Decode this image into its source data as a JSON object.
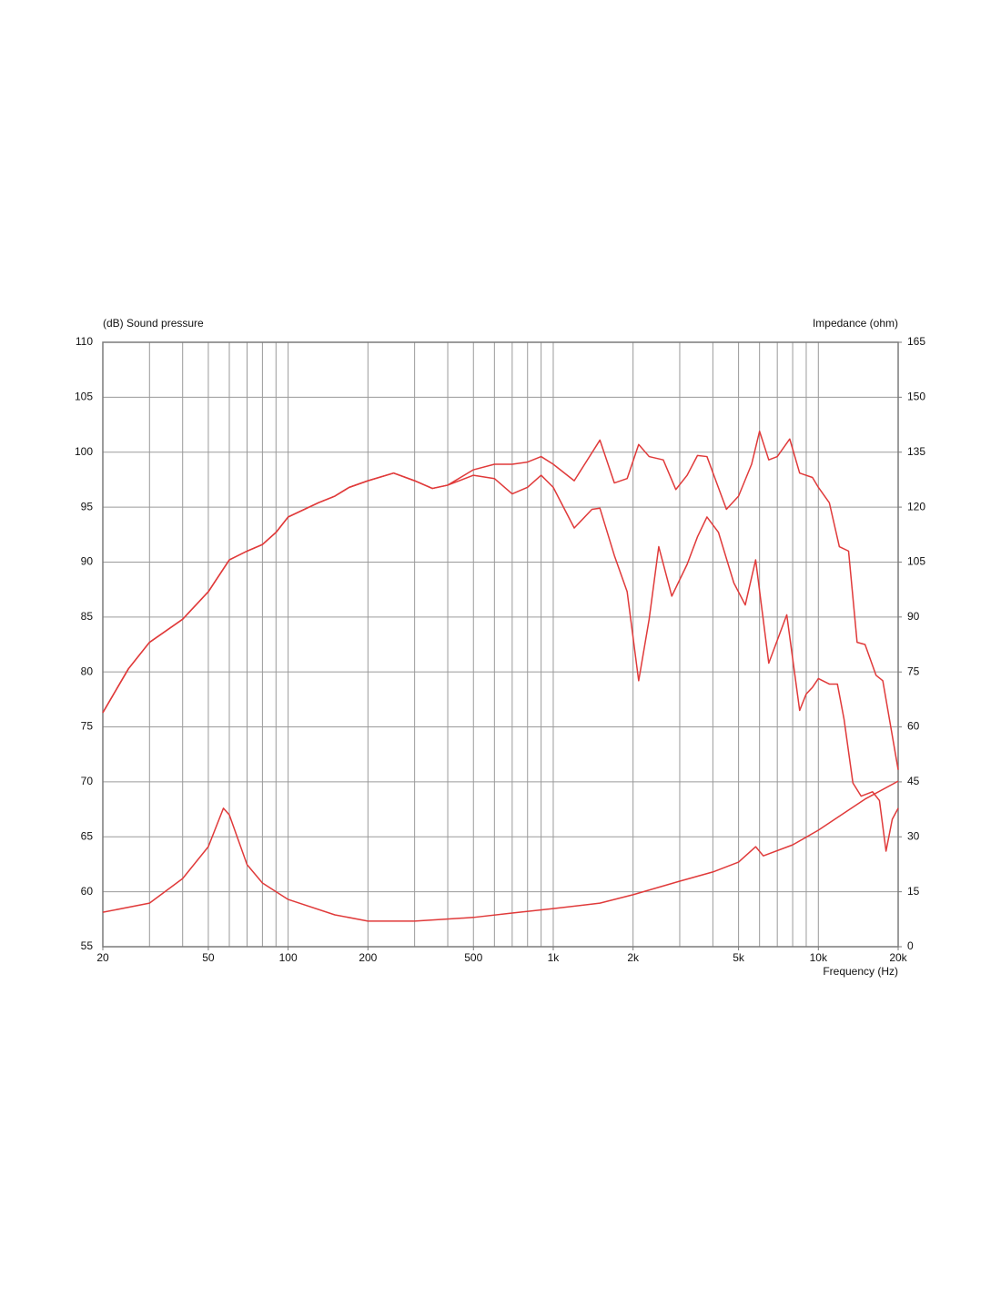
{
  "chart_data": {
    "type": "line",
    "ylabel": "(dB)  Sound pressure",
    "y2label": "Impedance  (ohm)",
    "xlabel": "Frequency  (Hz)",
    "xscale": "log",
    "grid": true,
    "xlim": [
      20,
      20000
    ],
    "xticks": [
      20,
      50,
      100,
      200,
      500,
      {
        "value": 1000,
        "label": "1k"
      },
      {
        "value": 2000,
        "label": "2k"
      },
      {
        "value": 5000,
        "label": "5k"
      },
      {
        "value": 10000,
        "label": "10k"
      },
      {
        "value": 20000,
        "label": "20k"
      }
    ],
    "xgrid": [
      20,
      30,
      40,
      50,
      60,
      70,
      80,
      90,
      100,
      200,
      300,
      400,
      500,
      600,
      700,
      800,
      900,
      1000,
      2000,
      3000,
      4000,
      5000,
      6000,
      7000,
      8000,
      9000,
      10000,
      20000
    ],
    "ylim": [
      55,
      110
    ],
    "yticks": [
      55,
      60,
      65,
      70,
      75,
      80,
      85,
      90,
      95,
      100,
      105,
      110
    ],
    "y2lim": [
      0,
      165
    ],
    "y2ticks": [
      0,
      15,
      30,
      45,
      60,
      75,
      90,
      105,
      120,
      135,
      150,
      165
    ],
    "series": [
      {
        "color": "#e03a3a",
        "x": [
          20,
          25,
          30,
          40,
          50,
          60,
          70,
          80,
          90,
          100,
          130,
          150,
          170,
          200,
          250,
          300,
          350,
          400,
          500,
          600,
          700,
          800,
          900,
          1000,
          1200,
          1500,
          1700,
          1900,
          2100,
          2300,
          2600,
          2900,
          3200,
          3500,
          3800,
          4500,
          5000,
          5600,
          6000,
          6500,
          7000,
          7800,
          8500,
          9500,
          10000,
          11000,
          12000,
          13000,
          14000,
          15000,
          16500,
          17500,
          20000
        ],
        "values": [
          76.3,
          80.3,
          82.7,
          84.8,
          87.3,
          90.2,
          91.0,
          91.6,
          92.7,
          94.1,
          95.4,
          96.0,
          96.8,
          97.4,
          98.1,
          97.4,
          96.7,
          97.0,
          98.4,
          98.9,
          98.9,
          99.1,
          99.6,
          98.9,
          97.4,
          101.1,
          97.2,
          97.6,
          100.7,
          99.6,
          99.3,
          96.6,
          97.9,
          99.7,
          99.6,
          94.8,
          96.0,
          98.9,
          101.9,
          99.3,
          99.6,
          101.2,
          98.1,
          97.7,
          96.8,
          95.4,
          91.4,
          91.0,
          82.7,
          82.5,
          79.7,
          79.2,
          71.1
        ]
      },
      {
        "color": "#e03a3a",
        "x": [
          20,
          25,
          30,
          40,
          50,
          60,
          70,
          80,
          90,
          100,
          130,
          150,
          170,
          200,
          250,
          300,
          350,
          400,
          500,
          600,
          700,
          800,
          900,
          1000,
          1200,
          1400,
          1500,
          1700,
          1900,
          2100,
          2300,
          2500,
          2800,
          3200,
          3500,
          3800,
          4200,
          4800,
          5300,
          5800,
          6500,
          7600,
          8500,
          9000,
          9500,
          10000,
          11000,
          11800,
          12500,
          13500,
          14500,
          16000,
          17000,
          18000,
          19000,
          20000
        ],
        "values": [
          76.3,
          80.3,
          82.7,
          84.8,
          87.3,
          90.2,
          91.0,
          91.6,
          92.7,
          94.1,
          95.4,
          96.0,
          96.8,
          97.4,
          98.1,
          97.4,
          96.7,
          97.0,
          97.9,
          97.6,
          96.2,
          96.8,
          97.9,
          96.8,
          93.1,
          94.8,
          94.9,
          90.6,
          87.3,
          79.2,
          84.8,
          91.4,
          86.9,
          89.8,
          92.3,
          94.1,
          92.7,
          88.1,
          86.1,
          90.2,
          80.8,
          85.2,
          76.5,
          78.0,
          78.6,
          79.4,
          78.9,
          78.9,
          75.7,
          69.9,
          68.7,
          69.1,
          68.3,
          63.7,
          66.6,
          67.6
        ]
      },
      {
        "color": "#e03a3a",
        "axis": "y2",
        "x": [
          20,
          30,
          40,
          50,
          57,
          60,
          70,
          80,
          100,
          150,
          200,
          300,
          500,
          700,
          1000,
          1500,
          2000,
          3000,
          4000,
          5000,
          5800,
          6200,
          8000,
          10000,
          15000,
          20000
        ],
        "values": [
          9.4,
          11.9,
          18.6,
          27.3,
          37.8,
          36.0,
          22.4,
          17.4,
          12.9,
          8.7,
          7.0,
          7.0,
          8.0,
          9.2,
          10.4,
          11.9,
          14.2,
          17.9,
          20.4,
          23.1,
          27.3,
          24.8,
          27.8,
          31.8,
          40.3,
          45.2
        ]
      }
    ]
  }
}
